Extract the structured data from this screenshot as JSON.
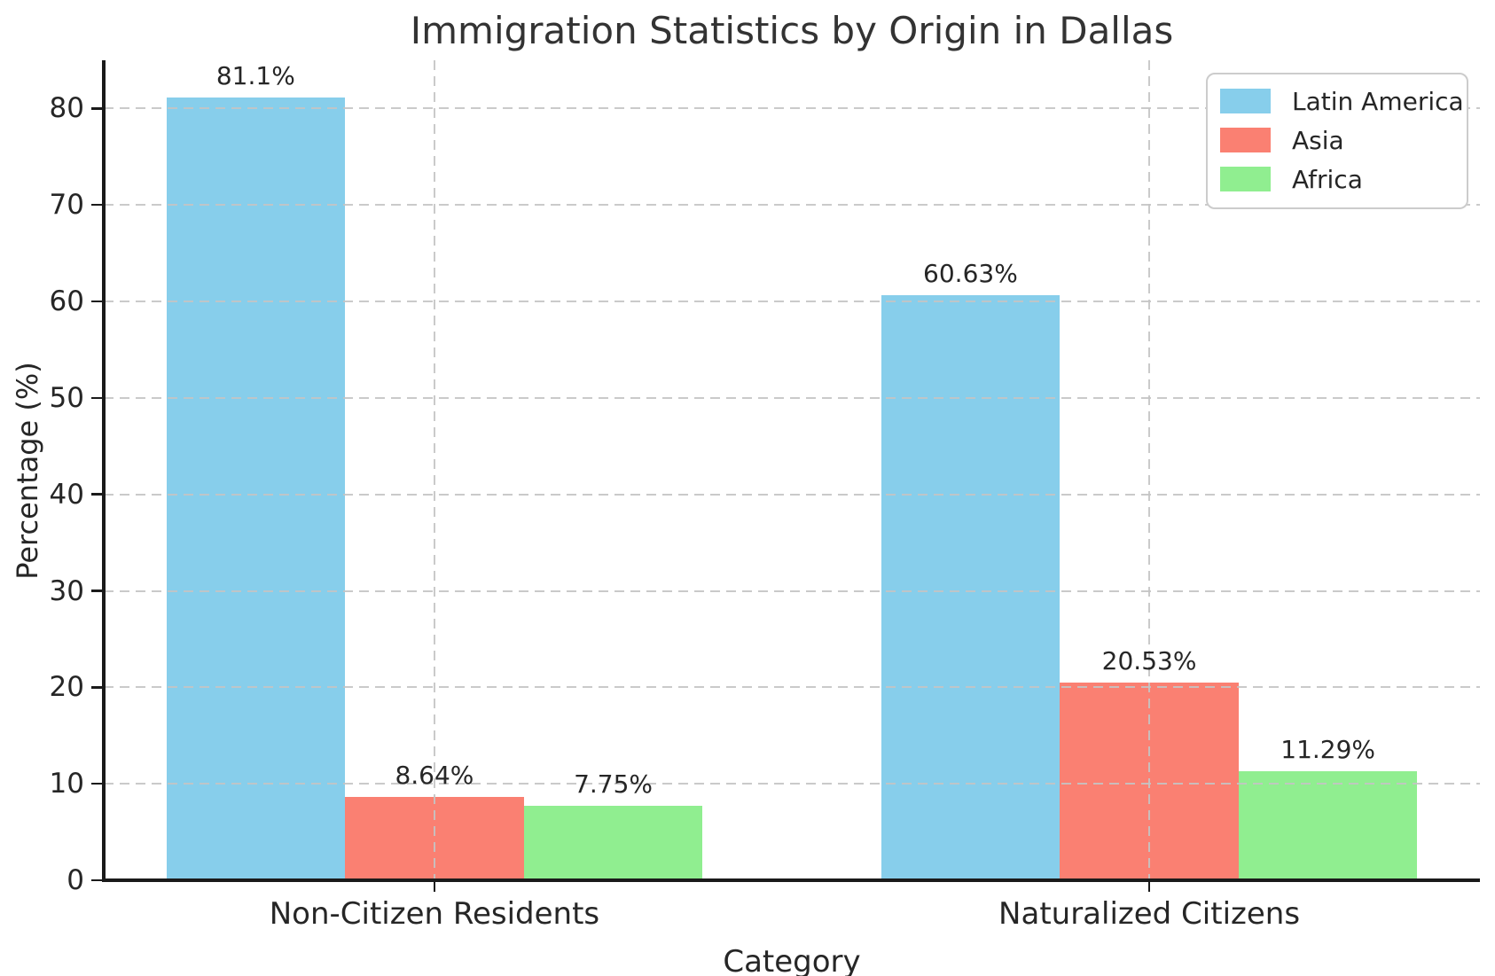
{
  "figure": {
    "background": "#ffffff"
  },
  "chart_data": {
    "type": "bar",
    "title": "Immigration Statistics by Origin in Dallas",
    "xlabel": "Category",
    "ylabel": "Percentage (%)",
    "categories": [
      "Non-Citizen Residents",
      "Naturalized Citizens"
    ],
    "series": [
      {
        "name": "Latin America",
        "color": "#87CEEB",
        "values": [
          81.1,
          60.63
        ],
        "labels": [
          "81.1%",
          "60.63%"
        ]
      },
      {
        "name": "Asia",
        "color": "#FA8072",
        "values": [
          8.64,
          20.53
        ],
        "labels": [
          "8.64%",
          "20.53%"
        ]
      },
      {
        "name": "Africa",
        "color": "#90EE90",
        "values": [
          7.75,
          11.29
        ],
        "labels": [
          "7.75%",
          "11.29%"
        ]
      }
    ],
    "ylim": [
      0,
      85
    ],
    "yticks": [
      0,
      10,
      20,
      30,
      40,
      50,
      60,
      70,
      80
    ],
    "grid": "dashed both axes, drawn over bars",
    "legend_position": "upper right"
  },
  "colors": {
    "text": "#262626",
    "title_text": "#333333",
    "grid": "#c4c4c4",
    "spine": "#1a1a1a",
    "legend_border": "#cccccc",
    "legend_bg": "#ffffff"
  }
}
